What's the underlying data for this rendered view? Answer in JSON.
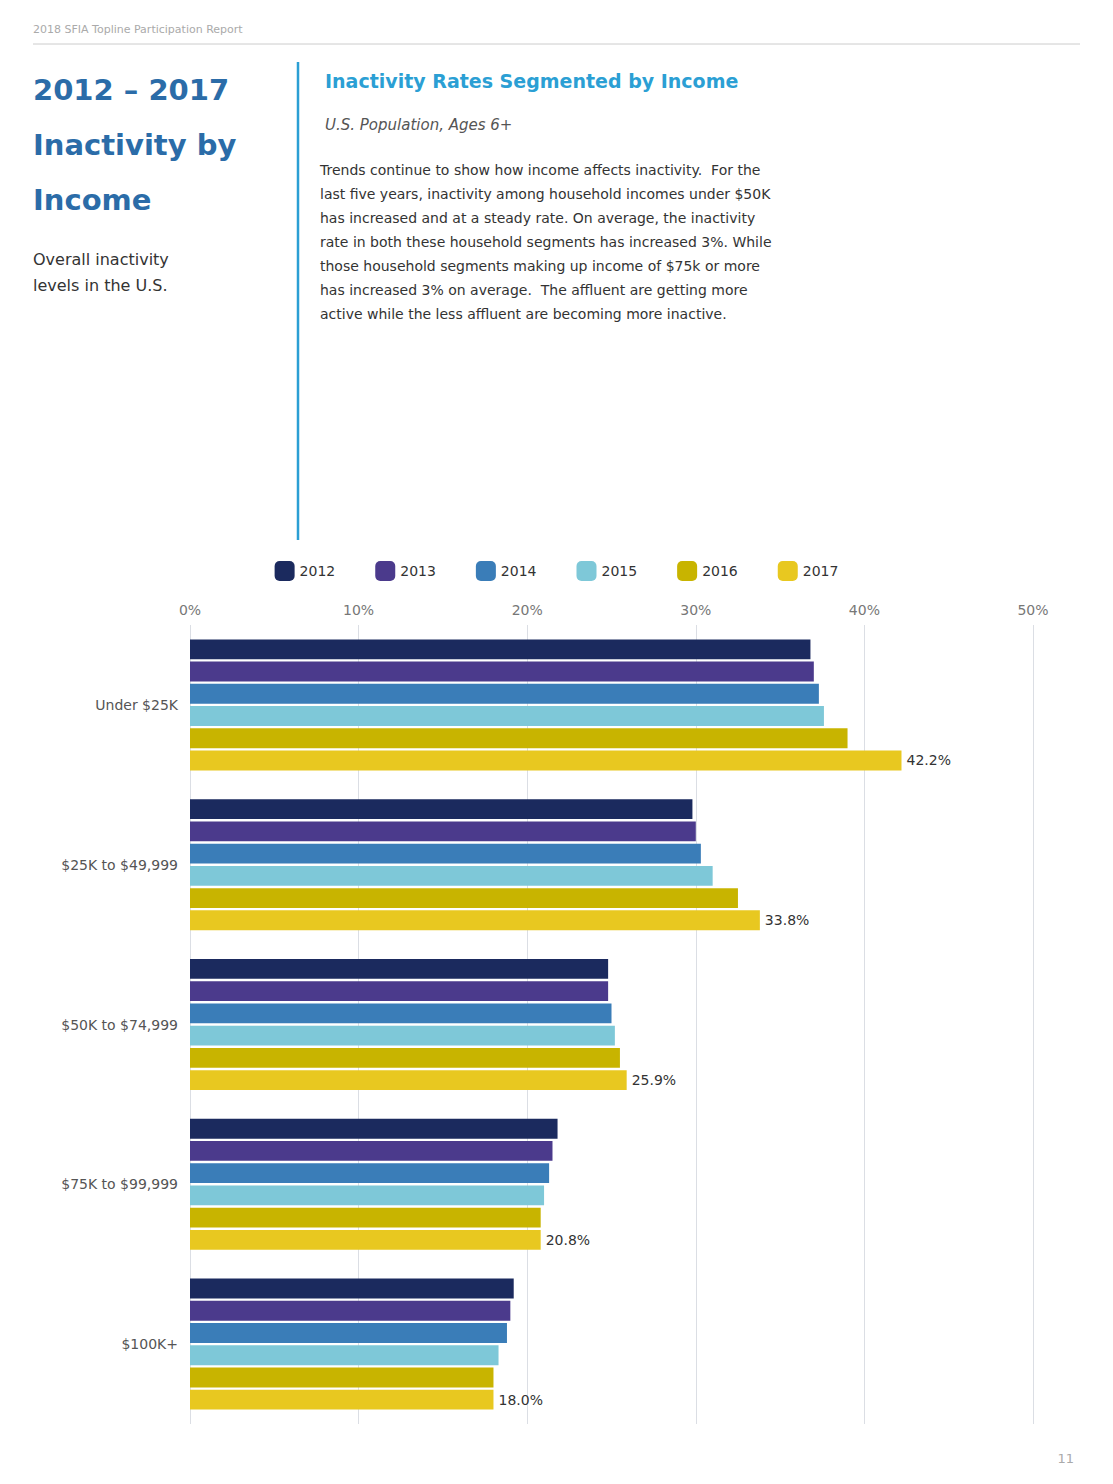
{
  "chart_data": {
    "type": "bar",
    "orientation": "horizontal",
    "title": "Inactivity Rates Segmented by Income",
    "subtitle": "U.S. Population, Ages 6+",
    "annotations": [
      "2018 SFIA Topline Participation Report",
      "2012 – 2017",
      "Inactivity by",
      "Income",
      "Overall inactivity\nlevels in the U.S.",
      "Trends continue to show how income affects inactivity.  For the\nlast five years, inactivity among household incomes under $50K\nhas increased and at a steady rate. On average, the inactivity\nrate in both these household segments has increased 3%. While\nthose household segments making up income of $75k or more\nhas increased 3% on average.  The affluent are getting more\nactive while the less affluent are becoming more inactive.",
      "11"
    ],
    "categories": [
      "Under $25K",
      "$25K to $49,999",
      "$50K to $74,999",
      "$75K to $99,999",
      "$100K+"
    ],
    "series": [
      {
        "name": "2012",
        "color": "#1b2a5e",
        "values": [
          0.368,
          0.298,
          0.248,
          0.218,
          0.192
        ]
      },
      {
        "name": "2013",
        "color": "#4b3a8c",
        "values": [
          0.37,
          0.3,
          0.248,
          0.215,
          0.19
        ]
      },
      {
        "name": "2014",
        "color": "#3a7db8",
        "values": [
          0.373,
          0.303,
          0.25,
          0.213,
          0.188
        ]
      },
      {
        "name": "2015",
        "color": "#7ec8d8",
        "values": [
          0.376,
          0.31,
          0.252,
          0.21,
          0.183
        ]
      },
      {
        "name": "2016",
        "color": "#c8b400",
        "values": [
          0.39,
          0.325,
          0.255,
          0.208,
          0.18
        ]
      },
      {
        "name": "2017",
        "color": "#e8c820",
        "values": [
          0.422,
          0.338,
          0.259,
          0.208,
          0.18
        ],
        "value_labels": [
          "42.2%",
          "33.8%",
          "25.9%",
          "20.8%",
          "18.0%"
        ]
      }
    ],
    "xlim": [
      0,
      0.5
    ],
    "xticks": [
      {
        "value": 0.0,
        "label": "0%"
      },
      {
        "value": 0.1,
        "label": "10%"
      },
      {
        "value": 0.2,
        "label": "20%"
      },
      {
        "value": 0.3,
        "label": "30%"
      },
      {
        "value": 0.4,
        "label": "40%"
      },
      {
        "value": 0.5,
        "label": "50%"
      }
    ],
    "grid": true,
    "legend": "top"
  }
}
